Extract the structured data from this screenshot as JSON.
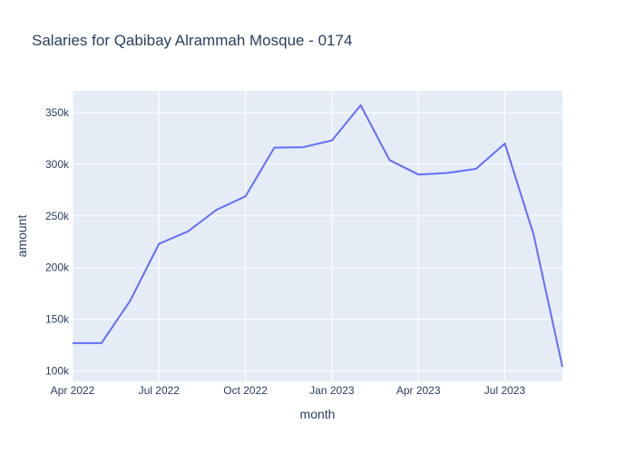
{
  "chart_data": {
    "type": "line",
    "title": "Salaries for Qabibay Alrammah Mosque - 0174",
    "xlabel": "month",
    "ylabel": "amount",
    "x": [
      "2022-04",
      "2022-05",
      "2022-06",
      "2022-07",
      "2022-08",
      "2022-09",
      "2022-10",
      "2022-11",
      "2022-12",
      "2023-01",
      "2023-02",
      "2023-03",
      "2023-04",
      "2023-05",
      "2023-06",
      "2023-07",
      "2023-08",
      "2023-09"
    ],
    "series": [
      {
        "name": "",
        "color": "#636efa",
        "values": [
          127000,
          127000,
          168000,
          223000,
          235000,
          256000,
          269000,
          316000,
          316500,
          323000,
          357000,
          304000,
          290000,
          291500,
          295500,
          320000,
          232000,
          104000
        ]
      }
    ],
    "xlim": [
      "2022-04",
      "2023-09"
    ],
    "ylim": [
      90000,
      371000
    ],
    "x_ticks": [
      {
        "value": "2022-04",
        "label": "Apr 2022"
      },
      {
        "value": "2022-07",
        "label": "Jul 2022"
      },
      {
        "value": "2022-10",
        "label": "Oct 2022"
      },
      {
        "value": "2023-01",
        "label": "Jan 2023"
      },
      {
        "value": "2023-04",
        "label": "Apr 2023"
      },
      {
        "value": "2023-07",
        "label": "Jul 2023"
      }
    ],
    "y_ticks": [
      {
        "value": 100000,
        "label": "100k"
      },
      {
        "value": 150000,
        "label": "150k"
      },
      {
        "value": 200000,
        "label": "200k"
      },
      {
        "value": 250000,
        "label": "250k"
      },
      {
        "value": 300000,
        "label": "300k"
      },
      {
        "value": 350000,
        "label": "350k"
      }
    ],
    "grid": true,
    "legend": "none",
    "colors": {
      "plot_background": "#e5ecf6",
      "grid": "#ffffff",
      "text": "#2a3f5f",
      "line": "#636efa"
    }
  }
}
